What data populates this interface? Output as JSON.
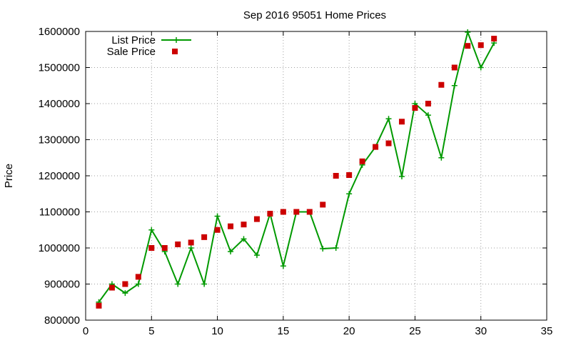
{
  "chart_data": {
    "type": "line",
    "title": "Sep 2016 95051 Home Prices",
    "xlabel": "",
    "ylabel": "Price",
    "xlim": [
      0,
      35
    ],
    "ylim": [
      800000,
      1600000
    ],
    "x_ticks": [
      0,
      5,
      10,
      15,
      20,
      25,
      30,
      35
    ],
    "y_ticks": [
      800000,
      900000,
      1000000,
      1100000,
      1200000,
      1300000,
      1400000,
      1500000,
      1600000
    ],
    "x_tick_labels": [
      "0",
      "5",
      "10",
      "15",
      "20",
      "25",
      "30",
      "35"
    ],
    "y_tick_labels": [
      "800000",
      "900000",
      "1000000",
      "1100000",
      "1200000",
      "1300000",
      "1400000",
      "1500000",
      "1600000"
    ],
    "grid": true,
    "legend_position": "top-left",
    "series": [
      {
        "name": "List Price",
        "style": "line+plus",
        "color": "#009900",
        "x": [
          1,
          2,
          3,
          4,
          5,
          6,
          7,
          8,
          9,
          10,
          11,
          12,
          13,
          14,
          15,
          16,
          17,
          18,
          19,
          20,
          21,
          22,
          23,
          24,
          25,
          26,
          27,
          28,
          29,
          30,
          31
        ],
        "y": [
          850000,
          900000,
          875000,
          900000,
          1050000,
          990000,
          900000,
          1000000,
          900000,
          1088000,
          990000,
          1025000,
          980000,
          1095000,
          950000,
          1100000,
          1100000,
          998000,
          1000000,
          1150000,
          1230000,
          1280000,
          1358000,
          1198000,
          1400000,
          1368000,
          1250000,
          1450000,
          1598000,
          1500000,
          1568000
        ]
      },
      {
        "name": "Sale Price",
        "style": "square",
        "color": "#cc0000",
        "x": [
          1,
          2,
          3,
          4,
          5,
          6,
          7,
          8,
          9,
          10,
          11,
          12,
          13,
          14,
          15,
          16,
          17,
          18,
          19,
          20,
          21,
          22,
          23,
          24,
          25,
          26,
          27,
          28,
          29,
          30,
          31
        ],
        "y": [
          840000,
          890000,
          900000,
          920000,
          1000000,
          1000000,
          1010000,
          1015000,
          1030000,
          1050000,
          1060000,
          1065000,
          1080000,
          1095000,
          1100000,
          1100000,
          1100000,
          1120000,
          1200000,
          1202000,
          1240000,
          1280000,
          1290000,
          1350000,
          1388000,
          1400000,
          1452000,
          1500000,
          1560000,
          1562000,
          1580000
        ]
      }
    ]
  }
}
